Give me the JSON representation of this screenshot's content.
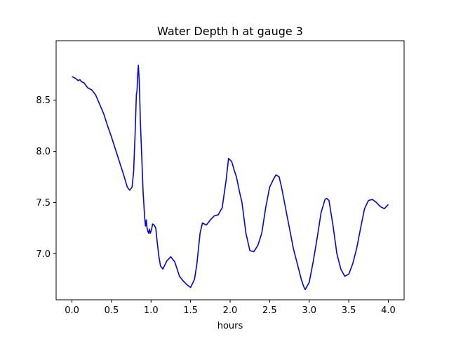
{
  "chart_data": {
    "type": "line",
    "title": "Water Depth h at gauge 3",
    "xlabel": "hours",
    "ylabel": "",
    "xlim": [
      -0.2,
      4.2
    ],
    "ylim": [
      6.55,
      9.08
    ],
    "xticks": [
      0.0,
      0.5,
      1.0,
      1.5,
      2.0,
      2.5,
      3.0,
      3.5,
      4.0
    ],
    "xtick_labels": [
      "0.0",
      "0.5",
      "1.0",
      "1.5",
      "2.0",
      "2.5",
      "3.0",
      "3.5",
      "4.0"
    ],
    "yticks": [
      7.0,
      7.5,
      8.0,
      8.5
    ],
    "ytick_labels": [
      "7.0",
      "7.5",
      "8.0",
      "8.5"
    ],
    "grid": false,
    "series": [
      {
        "color": "#0000ff",
        "x": [
          0.0,
          0.05,
          0.08,
          0.1,
          0.12,
          0.15,
          0.2,
          0.25,
          0.3,
          0.35,
          0.4,
          0.45,
          0.5,
          0.55,
          0.6,
          0.65,
          0.7,
          0.73,
          0.76,
          0.78,
          0.8,
          0.815,
          0.82,
          0.825,
          0.83,
          0.84,
          0.85,
          0.86,
          0.865,
          0.87,
          0.88,
          0.9,
          0.92,
          0.93,
          0.94,
          0.95,
          0.96,
          0.97,
          0.98,
          0.99,
          1.0,
          1.01,
          1.02,
          1.04,
          1.06,
          1.08,
          1.1,
          1.12,
          1.15,
          1.2,
          1.25,
          1.3,
          1.33,
          1.36,
          1.4,
          1.45,
          1.5,
          1.55,
          1.58,
          1.6,
          1.62,
          1.65,
          1.7,
          1.75,
          1.8,
          1.85,
          1.9,
          1.95,
          1.98,
          2.02,
          2.05,
          2.08,
          2.12,
          2.15,
          2.2,
          2.25,
          2.3,
          2.35,
          2.4,
          2.45,
          2.5,
          2.55,
          2.58,
          2.62,
          2.65,
          2.7,
          2.75,
          2.8,
          2.85,
          2.9,
          2.93,
          2.95,
          3.0,
          3.05,
          3.1,
          3.15,
          3.2,
          3.22,
          3.25,
          3.3,
          3.35,
          3.4,
          3.45,
          3.5,
          3.55,
          3.6,
          3.65,
          3.7,
          3.75,
          3.8,
          3.85,
          3.9,
          3.95,
          4.0
        ],
        "y": [
          8.73,
          8.71,
          8.69,
          8.7,
          8.68,
          8.67,
          8.62,
          8.6,
          8.55,
          8.46,
          8.37,
          8.25,
          8.14,
          8.02,
          7.9,
          7.78,
          7.65,
          7.62,
          7.65,
          7.8,
          8.2,
          8.56,
          8.57,
          8.62,
          8.73,
          8.84,
          8.7,
          8.45,
          8.3,
          8.2,
          8.0,
          7.6,
          7.35,
          7.27,
          7.33,
          7.25,
          7.22,
          7.2,
          7.24,
          7.2,
          7.22,
          7.25,
          7.29,
          7.28,
          7.25,
          7.1,
          6.97,
          6.88,
          6.85,
          6.93,
          6.97,
          6.92,
          6.85,
          6.78,
          6.74,
          6.7,
          6.67,
          6.75,
          6.9,
          7.05,
          7.2,
          7.3,
          7.28,
          7.33,
          7.37,
          7.38,
          7.45,
          7.72,
          7.93,
          7.9,
          7.82,
          7.75,
          7.6,
          7.5,
          7.2,
          7.03,
          7.02,
          7.08,
          7.2,
          7.45,
          7.65,
          7.73,
          7.77,
          7.75,
          7.65,
          7.45,
          7.25,
          7.05,
          6.9,
          6.75,
          6.68,
          6.65,
          6.72,
          6.92,
          7.15,
          7.4,
          7.53,
          7.54,
          7.52,
          7.28,
          7.0,
          6.85,
          6.78,
          6.8,
          6.9,
          7.05,
          7.25,
          7.44,
          7.52,
          7.53,
          7.5,
          7.46,
          7.44,
          7.48
        ]
      }
    ]
  }
}
